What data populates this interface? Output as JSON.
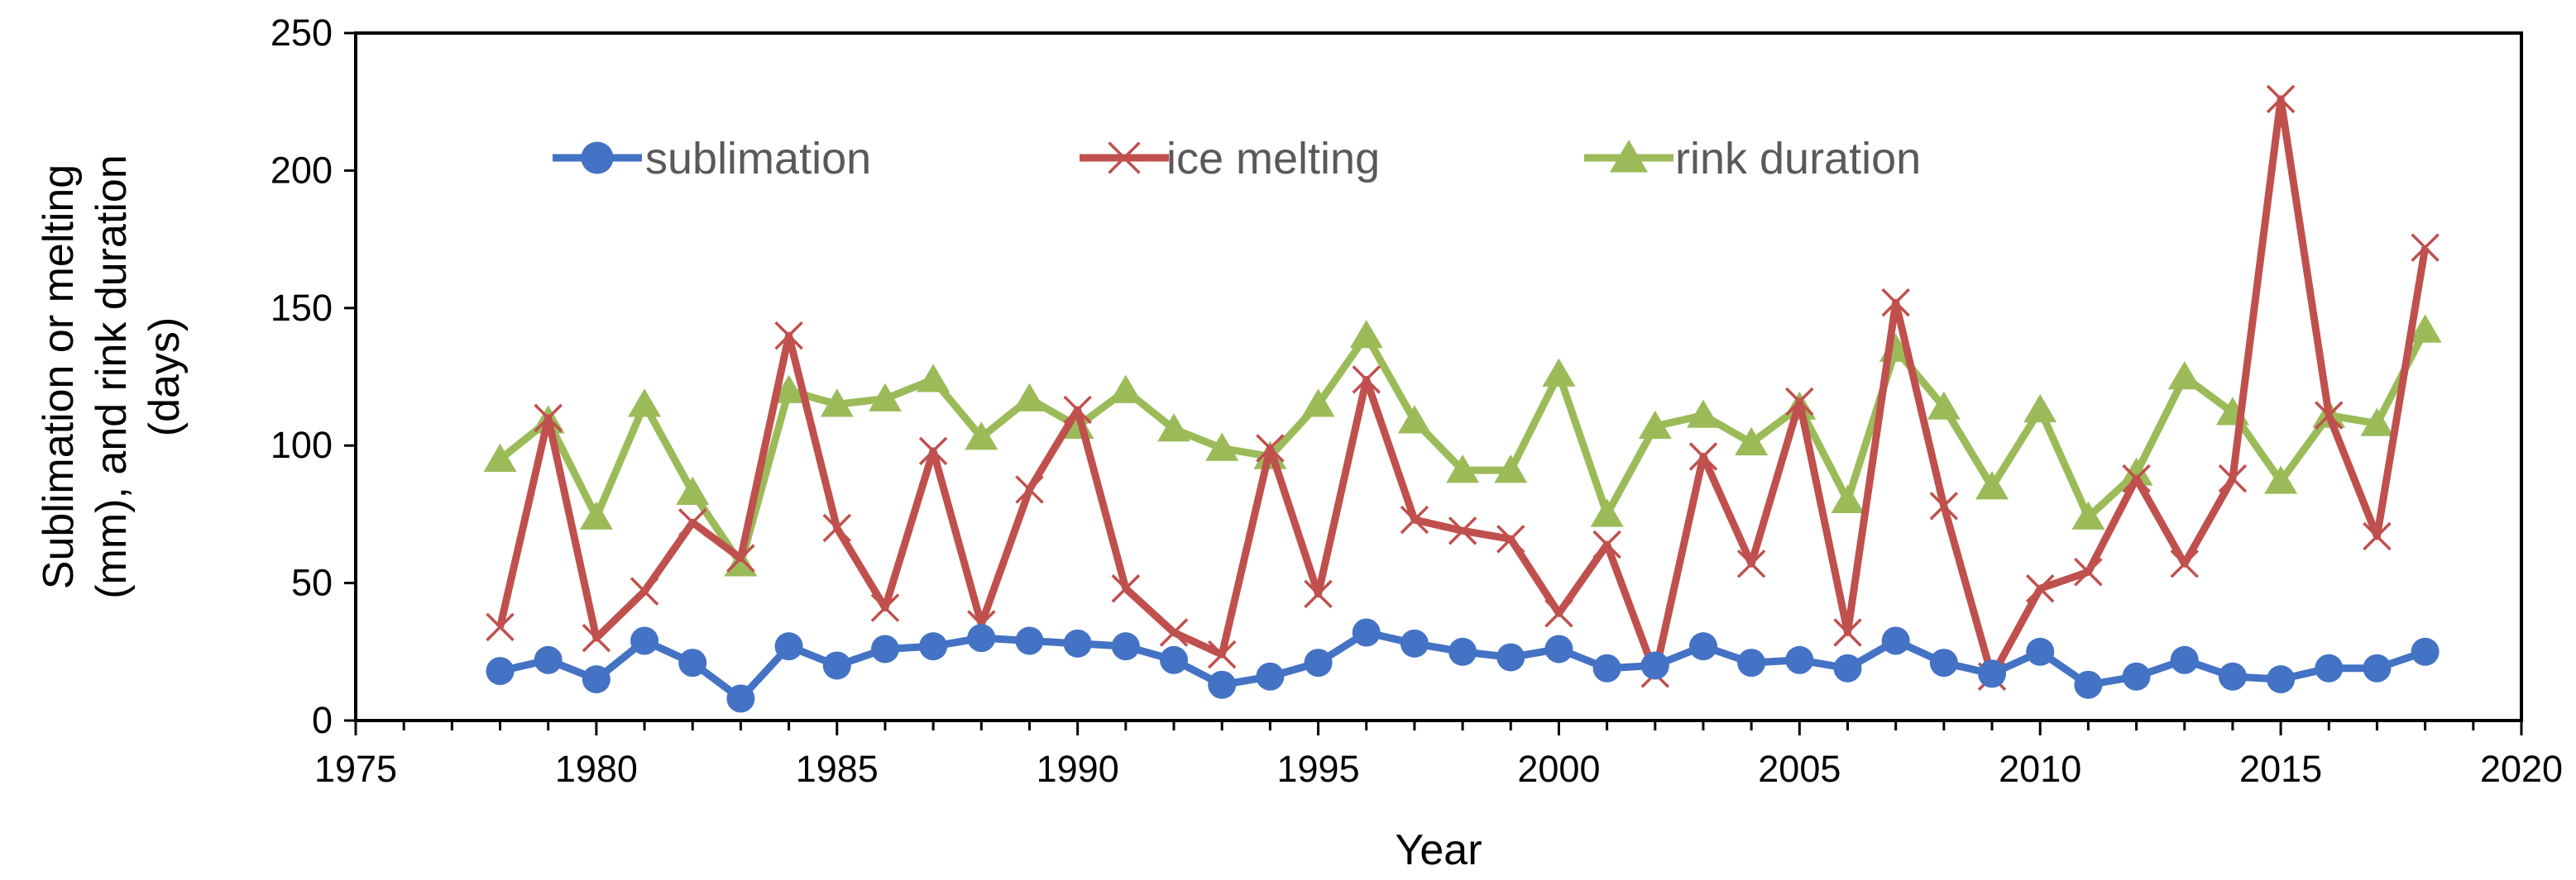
{
  "chart_data": {
    "type": "line",
    "title": "",
    "xlabel": "Year",
    "ylabel_lines": [
      "Sublimation or melting",
      "(mm), and rink duration",
      "(days)"
    ],
    "xlim": [
      1975,
      2020
    ],
    "ylim": [
      0,
      250
    ],
    "x_ticks": [
      1975,
      1980,
      1985,
      1990,
      1995,
      2000,
      2005,
      2010,
      2015,
      2020
    ],
    "y_ticks": [
      0,
      50,
      100,
      150,
      200,
      250
    ],
    "grid": false,
    "legend_position": "top-left",
    "x": [
      1978,
      1979,
      1980,
      1981,
      1982,
      1983,
      1984,
      1985,
      1986,
      1987,
      1988,
      1989,
      1990,
      1991,
      1992,
      1993,
      1994,
      1995,
      1996,
      1997,
      1998,
      1999,
      2000,
      2001,
      2002,
      2003,
      2004,
      2005,
      2006,
      2007,
      2008,
      2009,
      2010,
      2011,
      2012,
      2013,
      2014,
      2015,
      2016,
      2017,
      2018
    ],
    "series": [
      {
        "name": "sublimation",
        "color": "#4472C4",
        "marker": "circle",
        "values": [
          18,
          22,
          15,
          29,
          21,
          8,
          27,
          20,
          26,
          27,
          30,
          29,
          28,
          27,
          22,
          13,
          16,
          21,
          32,
          28,
          25,
          23,
          26,
          19,
          20,
          27,
          21,
          22,
          19,
          29,
          21,
          17,
          25,
          13,
          16,
          22,
          16,
          15,
          19,
          19,
          25
        ]
      },
      {
        "name": "ice melting",
        "color": "#C0504D",
        "marker": "x",
        "values": [
          34,
          110,
          30,
          47,
          72,
          59,
          140,
          70,
          41,
          98,
          35,
          84,
          113,
          48,
          32,
          24,
          99,
          46,
          124,
          73,
          69,
          66,
          39,
          64,
          17,
          96,
          57,
          116,
          32,
          152,
          78,
          16,
          48,
          54,
          88,
          57,
          88,
          226,
          111,
          67,
          172
        ]
      },
      {
        "name": "rink duration",
        "color": "#9BBB59",
        "marker": "triangle",
        "values": [
          95,
          109,
          74,
          115,
          83,
          57,
          120,
          115,
          117,
          124,
          103,
          117,
          107,
          120,
          106,
          99,
          96,
          115,
          140,
          109,
          91,
          91,
          126,
          75,
          107,
          111,
          101,
          114,
          80,
          135,
          114,
          85,
          113,
          74,
          90,
          125,
          112,
          87,
          111,
          108,
          142
        ]
      }
    ]
  }
}
